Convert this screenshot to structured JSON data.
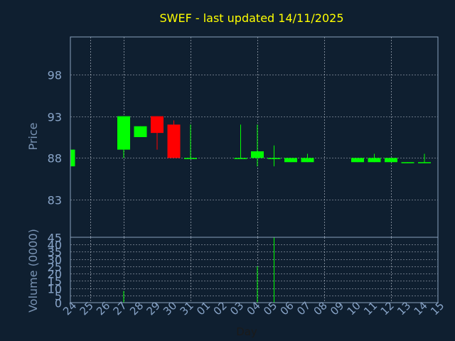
{
  "chart_data": {
    "type": "candlestick",
    "title": "SWEF - last updated 14/11/2025",
    "xlabel": "Day",
    "x_ticks": [
      "24",
      "25",
      "26",
      "27",
      "28",
      "29",
      "30",
      "31",
      "01",
      "02",
      "03",
      "04",
      "05",
      "06",
      "07",
      "08",
      "09",
      "10",
      "11",
      "12",
      "13",
      "14",
      "15"
    ],
    "price": {
      "ylabel": "Price",
      "ylim": [
        78.5,
        102.5
      ],
      "y_ticks": [
        83,
        88,
        93,
        98
      ],
      "candles": [
        {
          "day": "24",
          "open": 87.0,
          "close": 89.0,
          "high": 89.0,
          "low": 87.0
        },
        {
          "day": "27",
          "open": 89.0,
          "close": 93.0,
          "high": 93.0,
          "low": 88.0
        },
        {
          "day": "28",
          "open": 90.5,
          "close": 91.8,
          "high": 91.8,
          "low": 90.5
        },
        {
          "day": "29",
          "open": 93.0,
          "close": 91.0,
          "high": 93.0,
          "low": 89.0
        },
        {
          "day": "30",
          "open": 92.0,
          "close": 88.0,
          "high": 92.5,
          "low": 88.0
        },
        {
          "day": "31",
          "open": 87.9,
          "close": 88.0,
          "high": 92.0,
          "low": 87.9
        },
        {
          "day": "03",
          "open": 87.9,
          "close": 88.0,
          "high": 92.0,
          "low": 87.9
        },
        {
          "day": "04",
          "open": 88.0,
          "close": 88.8,
          "high": 92.0,
          "low": 87.0
        },
        {
          "day": "05",
          "open": 87.9,
          "close": 88.0,
          "high": 89.5,
          "low": 87.0
        },
        {
          "day": "06",
          "open": 87.5,
          "close": 88.0,
          "high": 88.0,
          "low": 87.5
        },
        {
          "day": "07",
          "open": 87.5,
          "close": 88.0,
          "high": 88.5,
          "low": 87.5
        },
        {
          "day": "10",
          "open": 87.5,
          "close": 88.0,
          "high": 88.0,
          "low": 87.5
        },
        {
          "day": "11",
          "open": 87.5,
          "close": 88.0,
          "high": 88.5,
          "low": 87.5
        },
        {
          "day": "12",
          "open": 87.5,
          "close": 88.0,
          "high": 88.0,
          "low": 87.5
        },
        {
          "day": "13",
          "open": 87.4,
          "close": 87.5,
          "high": 87.5,
          "low": 87.4
        },
        {
          "day": "14",
          "open": 87.4,
          "close": 87.5,
          "high": 88.5,
          "low": 87.4
        }
      ]
    },
    "volume": {
      "ylabel": "Volume (0000)",
      "ylim": [
        0,
        45
      ],
      "y_ticks": [
        0,
        5,
        10,
        15,
        20,
        25,
        30,
        35,
        40,
        45
      ],
      "values": [
        {
          "day": "24",
          "value": 0
        },
        {
          "day": "27",
          "value": 8
        },
        {
          "day": "28",
          "value": 0
        },
        {
          "day": "29",
          "value": 0
        },
        {
          "day": "30",
          "value": 0
        },
        {
          "day": "31",
          "value": 0
        },
        {
          "day": "03",
          "value": 0
        },
        {
          "day": "04",
          "value": 25
        },
        {
          "day": "05",
          "value": 45
        },
        {
          "day": "06",
          "value": 0
        },
        {
          "day": "07",
          "value": 0
        },
        {
          "day": "10",
          "value": 0
        },
        {
          "day": "11",
          "value": 0
        },
        {
          "day": "12",
          "value": 0
        },
        {
          "day": "13",
          "value": 0
        },
        {
          "day": "14",
          "value": 0
        }
      ]
    },
    "grid": true,
    "colors": {
      "background": "#0f1f30",
      "frame": "#8aa0bc",
      "grid": "#c0c8d4",
      "title": "#ffff00",
      "axis_text": "#88a4c8",
      "axis_title": "#7a94b4",
      "up": "#00ff00",
      "down": "#ff0000"
    }
  }
}
